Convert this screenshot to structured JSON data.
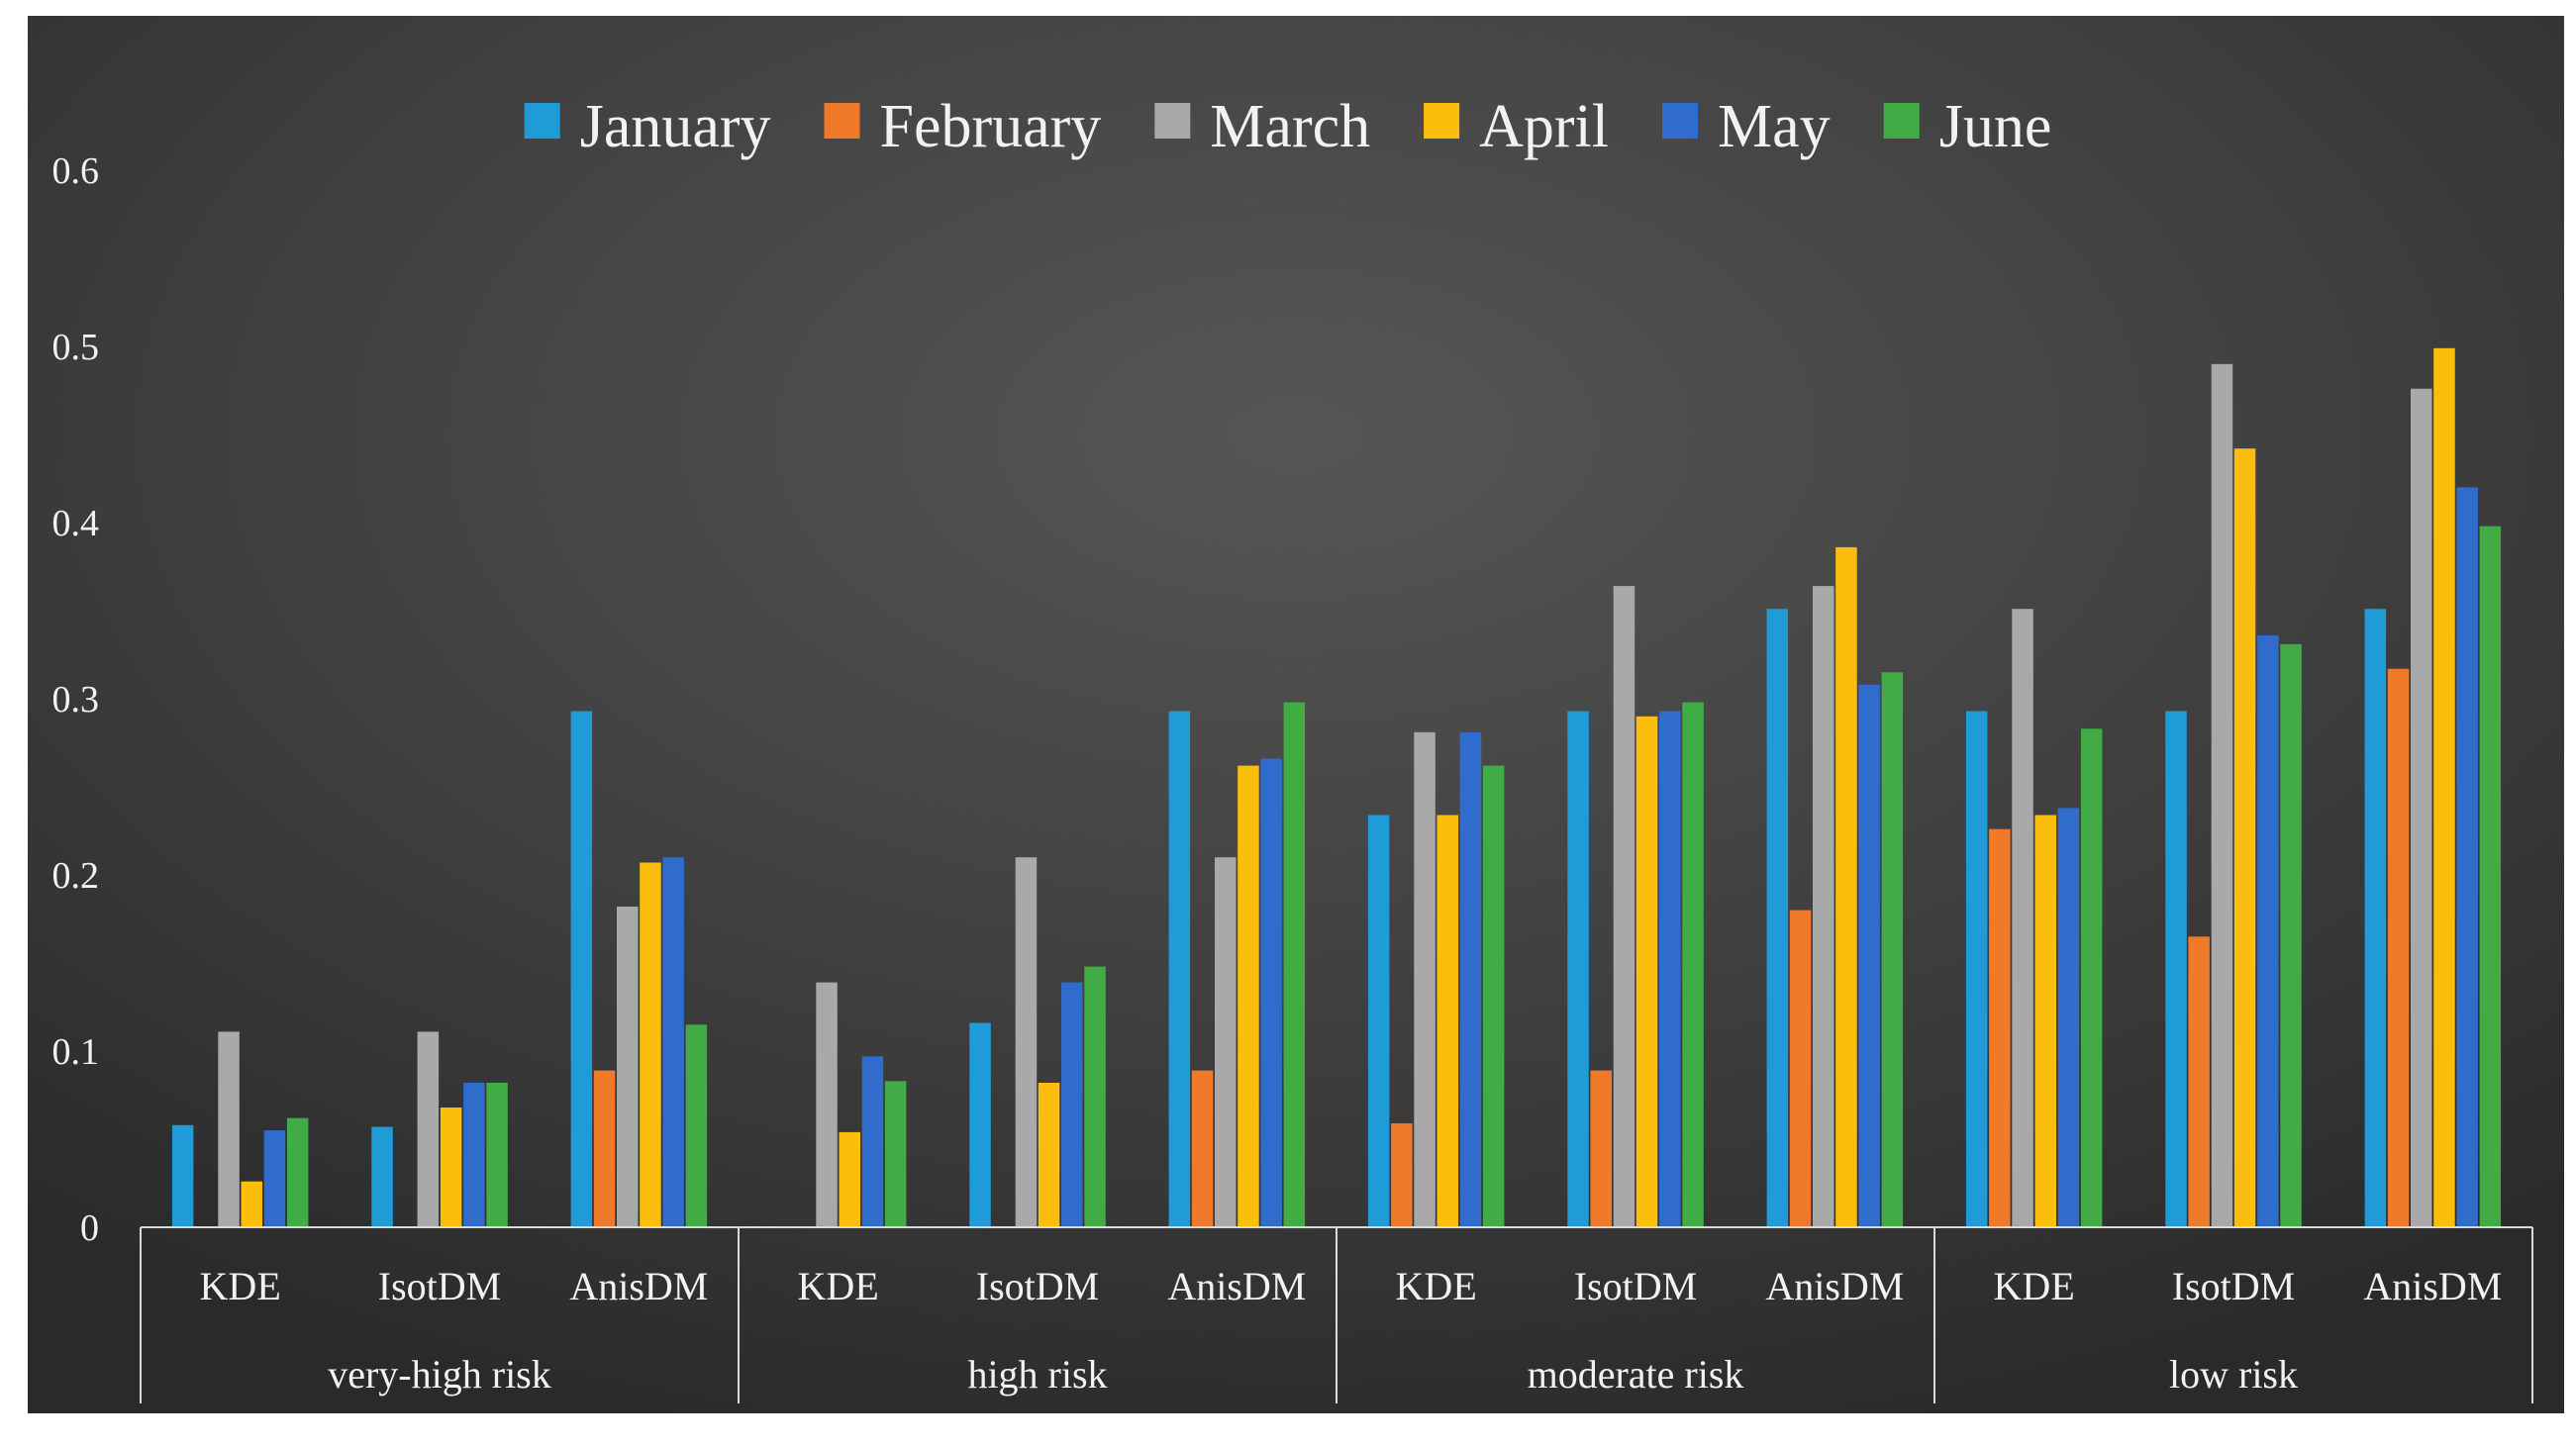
{
  "chart_data": {
    "type": "bar",
    "groups": [
      "very-high risk",
      "high risk",
      "moderate risk",
      "low risk"
    ],
    "methods": [
      "KDE",
      "IsotDM",
      "AnisDM"
    ],
    "categories": [
      "very-high risk / KDE",
      "very-high risk / IsotDM",
      "very-high risk / AnisDM",
      "high risk / KDE",
      "high risk / IsotDM",
      "high risk / AnisDM",
      "moderate risk / KDE",
      "moderate risk / IsotDM",
      "moderate risk / AnisDM",
      "low risk / KDE",
      "low risk / IsotDM",
      "low risk / AnisDM"
    ],
    "series": [
      {
        "name": "January",
        "color": "#1f9bd7",
        "values": [
          0.058,
          0.057,
          0.293,
          0.0,
          0.116,
          0.293,
          0.234,
          0.293,
          0.351,
          0.293,
          0.293,
          0.351
        ]
      },
      {
        "name": "February",
        "color": "#f07a2a",
        "values": [
          0.0,
          0.0,
          0.089,
          0.0,
          0.0,
          0.089,
          0.059,
          0.089,
          0.18,
          0.226,
          0.165,
          0.317
        ]
      },
      {
        "name": "March",
        "color": "#a9a9a9",
        "values": [
          0.111,
          0.111,
          0.182,
          0.139,
          0.21,
          0.21,
          0.281,
          0.364,
          0.364,
          0.351,
          0.49,
          0.476
        ]
      },
      {
        "name": "April",
        "color": "#fcbe0c",
        "values": [
          0.026,
          0.068,
          0.207,
          0.054,
          0.082,
          0.262,
          0.234,
          0.29,
          0.386,
          0.234,
          0.442,
          0.499
        ]
      },
      {
        "name": "May",
        "color": "#2f6ccc",
        "values": [
          0.055,
          0.082,
          0.21,
          0.097,
          0.139,
          0.266,
          0.281,
          0.293,
          0.308,
          0.238,
          0.336,
          0.42
        ]
      },
      {
        "name": "June",
        "color": "#41ac45",
        "values": [
          0.062,
          0.082,
          0.115,
          0.083,
          0.148,
          0.298,
          0.262,
          0.298,
          0.315,
          0.283,
          0.331,
          0.398
        ]
      }
    ],
    "yticks": [
      "0",
      "0.1",
      "0.2",
      "0.3",
      "0.4",
      "0.5",
      "0.6"
    ],
    "ylim": [
      0,
      0.6
    ],
    "legend_position": "top-center",
    "grid": false,
    "background": "#3a3a3a"
  }
}
